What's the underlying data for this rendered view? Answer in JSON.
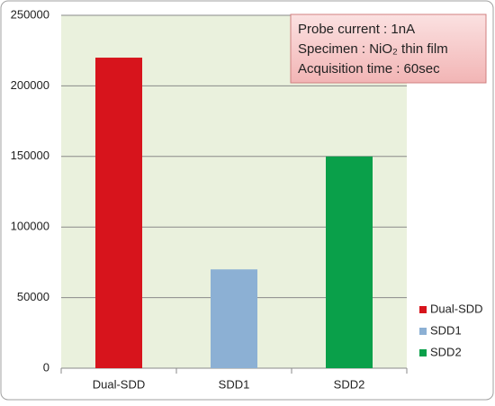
{
  "chart_data": {
    "type": "bar",
    "categories": [
      "Dual-SDD",
      "SDD1",
      "SDD2"
    ],
    "values": [
      220000,
      70000,
      150000
    ],
    "colors": [
      "#d7141c",
      "#8cb0d4",
      "#0aa04a"
    ],
    "ylim": [
      0,
      250000
    ],
    "yticks": [
      0,
      50000,
      100000,
      150000,
      200000,
      250000
    ],
    "grid": true,
    "legend": "right",
    "annotations": [
      "Probe current : 1nA",
      "Specimen : NiO₂ thin film",
      "Acquisition time : 60sec"
    ]
  }
}
